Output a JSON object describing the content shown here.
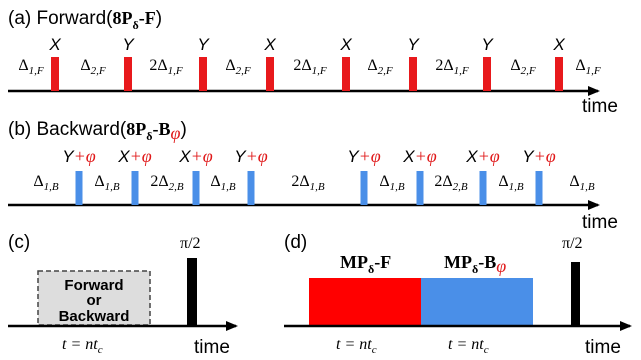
{
  "panel_a": {
    "label": "(a) Forward(",
    "seq_main": "8P",
    "seq_sub": "δ",
    "seq_tail": "-F",
    "close": ")",
    "gates": [
      "X",
      "Y",
      "Y",
      "X",
      "X",
      "Y",
      "Y",
      "X"
    ],
    "spacings": [
      {
        "pre": "",
        "main": "Δ",
        "sub": "1,F"
      },
      {
        "pre": "",
        "main": "Δ",
        "sub": "2,F"
      },
      {
        "pre": "2",
        "main": "Δ",
        "sub": "1,F"
      },
      {
        "pre": "",
        "main": "Δ",
        "sub": "2,F"
      },
      {
        "pre": "2",
        "main": "Δ",
        "sub": "1,F"
      },
      {
        "pre": "",
        "main": "Δ",
        "sub": "2,F"
      },
      {
        "pre": "2",
        "main": "Δ",
        "sub": "1,F"
      },
      {
        "pre": "",
        "main": "Δ",
        "sub": "2,F"
      },
      {
        "pre": "",
        "main": "Δ",
        "sub": "1,F"
      }
    ],
    "pulse_color": "#e8191c",
    "axis_label": "time"
  },
  "panel_b": {
    "label": "(b) Backward(",
    "seq_main": "8P",
    "seq_sub": "δ",
    "seq_tail": "-B",
    "seq_phase": "φ",
    "close": ")",
    "gates": [
      {
        "op": "Y",
        "phase": "+φ"
      },
      {
        "op": "X",
        "phase": "+φ"
      },
      {
        "op": "X",
        "phase": "+φ"
      },
      {
        "op": "Y",
        "phase": "+φ"
      },
      {
        "op": "Y",
        "phase": "+φ"
      },
      {
        "op": "X",
        "phase": "+φ"
      },
      {
        "op": "X",
        "phase": "+φ"
      },
      {
        "op": "Y",
        "phase": "+φ"
      }
    ],
    "spacings": [
      {
        "pre": "",
        "main": "Δ",
        "sub": "1,B"
      },
      {
        "pre": "",
        "main": "Δ",
        "sub": "1,B"
      },
      {
        "pre": "2",
        "main": "Δ",
        "sub": "2,B"
      },
      {
        "pre": "",
        "main": "Δ",
        "sub": "1,B"
      },
      {
        "pre": "2",
        "main": "Δ",
        "sub": "1,B"
      },
      {
        "pre": "",
        "main": "Δ",
        "sub": "1,B"
      },
      {
        "pre": "2",
        "main": "Δ",
        "sub": "2,B"
      },
      {
        "pre": "",
        "main": "Δ",
        "sub": "1,B"
      },
      {
        "pre": "",
        "main": "Δ",
        "sub": "1,B"
      }
    ],
    "pulse_color": "#4a8fe8",
    "axis_label": "time"
  },
  "panel_c": {
    "label": "(c)",
    "box_line1": "Forward",
    "box_line2": "or",
    "box_line3": "Backward",
    "pulse_label": "π/2",
    "duration": "t = nt",
    "duration_sub": "c",
    "axis_label": "time"
  },
  "panel_d": {
    "label": "(d)",
    "block1_main": "MP",
    "block1_sub": "δ",
    "block1_tail": "-F",
    "block2_main": "MP",
    "block2_sub": "δ",
    "block2_tail": "-B",
    "block2_phase": "φ",
    "pulse_label": "π/2",
    "duration1": "t = nt",
    "duration1_sub": "c",
    "duration2": "t = nt",
    "duration2_sub": "c",
    "block1_color": "#ff0000",
    "block2_color": "#4a8fe8",
    "axis_label": "time"
  }
}
